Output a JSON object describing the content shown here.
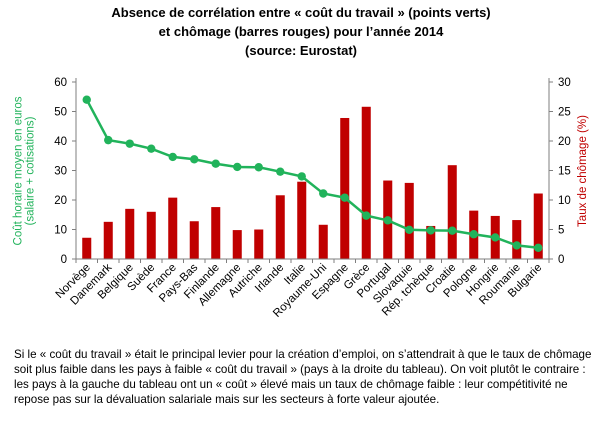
{
  "chart_data": {
    "type": "bar+line",
    "title_lines": [
      "Absence de corrélation entre « coût du travail » (points verts)",
      "et chômage (barres rouges) pour l’année 2014",
      "(source: Eurostat)"
    ],
    "categories": [
      "Norvège",
      "Danemark",
      "Belgique",
      "Suède",
      "France",
      "Pays-Bas",
      "Finlande",
      "Allemagne",
      "Autriche",
      "Irlande",
      "Italie",
      "Royaume-Uni",
      "Espagne",
      "Grèce",
      "Portugal",
      "Slovaquie",
      "Rép. tchèque",
      "Croatie",
      "Pologne",
      "Hongrie",
      "Roumanie",
      "Bulgarie"
    ],
    "series": [
      {
        "name": "Coût horaire moyen en euros (salaire + cotisations)",
        "kind": "line",
        "axis": "left",
        "color": "#21B35B",
        "values": [
          54.0,
          40.3,
          39.1,
          37.4,
          34.6,
          33.8,
          32.3,
          31.2,
          31.1,
          29.6,
          28.0,
          22.2,
          20.8,
          14.7,
          13.1,
          9.9,
          9.7,
          9.6,
          8.4,
          7.3,
          4.6,
          3.8
        ]
      },
      {
        "name": "Taux de chômage (%)",
        "kind": "bar",
        "axis": "right",
        "color": "#C00000",
        "values": [
          3.6,
          6.3,
          8.5,
          8.0,
          10.4,
          6.4,
          8.8,
          4.9,
          5.0,
          10.8,
          13.1,
          5.8,
          23.9,
          25.8,
          13.3,
          12.9,
          5.6,
          15.9,
          8.2,
          7.3,
          6.6,
          11.1
        ]
      }
    ],
    "y_left": {
      "label_lines": [
        "Coût horaire moyen en euros",
        "(salaire + cotisations)"
      ],
      "ticks": [
        0,
        10,
        20,
        30,
        40,
        50,
        60
      ],
      "min": 0,
      "max": 60
    },
    "y_right": {
      "label": "Taux de chômage (%)",
      "ticks": [
        0,
        5,
        10,
        15,
        20,
        25,
        30
      ],
      "min": 0,
      "max": 30
    },
    "colors": {
      "line": "#21B35B",
      "bar": "#C00000",
      "gridline": "#d9d9d9",
      "axis": "#7f7f7f"
    },
    "grid": false
  },
  "caption": "Si le « coût du travail » était le principal levier pour la création d’emploi, on s’attendrait à que le taux de chômage soit plus faible dans les pays à faible « coût du travail » (pays à la droite du tableau). On voit plutôt le contraire : les pays à la gauche du tableau ont un « coût » élevé mais un taux de chômage faible : leur compétitivité ne repose pas sur la dévaluation salariale mais sur les secteurs à forte valeur ajoutée."
}
